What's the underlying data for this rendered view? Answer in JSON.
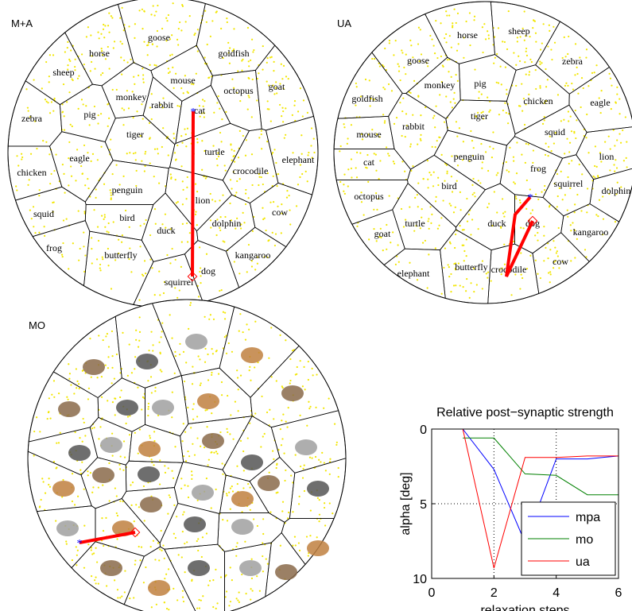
{
  "diagrams": [
    {
      "label": "M+A",
      "labels": [
        "goose",
        "goldfish",
        "horse",
        "sheep",
        "mouse",
        "octopus",
        "goat",
        "monkey",
        "rabbit",
        "cat",
        "pig",
        "zebra",
        "tiger",
        "turtle",
        "eagle",
        "crocodile",
        "elephant",
        "chicken",
        "penguin",
        "lion",
        "dolphin",
        "cow",
        "squid",
        "bird",
        "duck",
        "frog",
        "butterfly",
        "kangaroo",
        "dog",
        "squirrel"
      ]
    },
    {
      "label": "UA",
      "labels": [
        "horse",
        "sheep",
        "goose",
        "zebra",
        "monkey",
        "pig",
        "chicken",
        "eagle",
        "goldfish",
        "tiger",
        "rabbit",
        "squid",
        "mouse",
        "lion",
        "cat",
        "penguin",
        "frog",
        "squirrel",
        "bird",
        "dolphin",
        "octopus",
        "turtle",
        "duck",
        "dog",
        "kangaroo",
        "goat",
        "cow",
        "butterfly",
        "elephant",
        "crocodile"
      ]
    },
    {
      "label": "MO"
    }
  ],
  "chart_data": {
    "type": "line",
    "title": "Relative post−synaptic strength",
    "x_label": "relaxation steps",
    "y_label": "alpha [deg]",
    "x": [
      1,
      2,
      3,
      4,
      5,
      6
    ],
    "series": [
      {
        "name": "mpa",
        "color": "#0000ff",
        "values": [
          0,
          2.7,
          7.6,
          2.0,
          2.0,
          1.8
        ]
      },
      {
        "name": "mo",
        "color": "#008000",
        "values": [
          0.6,
          0.6,
          3.0,
          3.1,
          4.4,
          4.4
        ]
      },
      {
        "name": "ua",
        "color": "#ff0000",
        "values": [
          0,
          9.3,
          1.9,
          1.9,
          1.8,
          1.8
        ]
      }
    ],
    "xlim": [
      0,
      6
    ],
    "ylim": [
      0,
      10
    ],
    "y_inverted": true,
    "xticks": [
      0,
      2,
      4,
      6
    ],
    "yticks": [
      0,
      5,
      10
    ],
    "grid": true,
    "legend": "lower right"
  }
}
